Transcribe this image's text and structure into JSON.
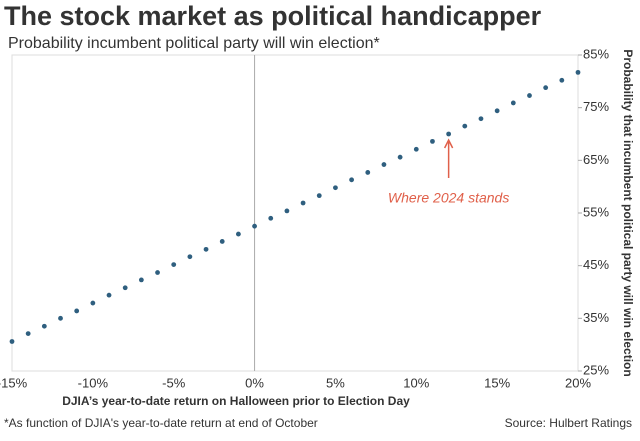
{
  "chart_data": {
    "type": "scatter",
    "title": "The stock market as political handicapper",
    "subtitle": "Probability incumbent political party will win election*",
    "x_label": "DJIA’s year-to-date return on Halloween prior to Election Day",
    "y_label": "Probability that incumbent political party will win election",
    "footnote": "*As function of DJIA's year-to-date return at end of October",
    "source": "Source: Hulbert Ratings",
    "annotation": {
      "text": "Where 2024 stands",
      "x": 12,
      "color": "#e0604a"
    },
    "x": [
      -15,
      -14,
      -13,
      -12,
      -11,
      -10,
      -9,
      -8,
      -7,
      -6,
      -5,
      -4,
      -3,
      -2,
      -1,
      0,
      1,
      2,
      3,
      4,
      5,
      6,
      7,
      8,
      9,
      10,
      11,
      12,
      13,
      14,
      15,
      16,
      17,
      18,
      19,
      20
    ],
    "series": [
      {
        "color": "#2f5f7f",
        "values": [
          30.6,
          32.1,
          33.5,
          35.0,
          36.4,
          37.9,
          39.4,
          40.8,
          42.3,
          43.7,
          45.2,
          46.7,
          48.1,
          49.6,
          51.0,
          52.5,
          54.0,
          55.4,
          56.9,
          58.3,
          59.8,
          61.3,
          62.7,
          64.2,
          65.6,
          67.1,
          68.6,
          70.0,
          71.5,
          72.9,
          74.4,
          75.9,
          77.3,
          78.8,
          80.2,
          81.7
        ]
      }
    ],
    "xlim": [
      -15,
      20
    ],
    "xticks": [
      {
        "value": -15,
        "label": "-15%"
      },
      {
        "value": -10,
        "label": "-10%"
      },
      {
        "value": -5,
        "label": "-5%"
      },
      {
        "value": 0,
        "label": "0%"
      },
      {
        "value": 5,
        "label": "5%"
      },
      {
        "value": 10,
        "label": "10%"
      },
      {
        "value": 15,
        "label": "15%"
      },
      {
        "value": 20,
        "label": "20%"
      }
    ],
    "ylim": [
      25,
      85
    ],
    "yticks": [
      {
        "value": 25,
        "label": "25%"
      },
      {
        "value": 35,
        "label": "35%"
      },
      {
        "value": 45,
        "label": "45%"
      },
      {
        "value": 55,
        "label": "55%"
      },
      {
        "value": 65,
        "label": "65%"
      },
      {
        "value": 75,
        "label": "75%"
      },
      {
        "value": 85,
        "label": "85%"
      }
    ]
  }
}
